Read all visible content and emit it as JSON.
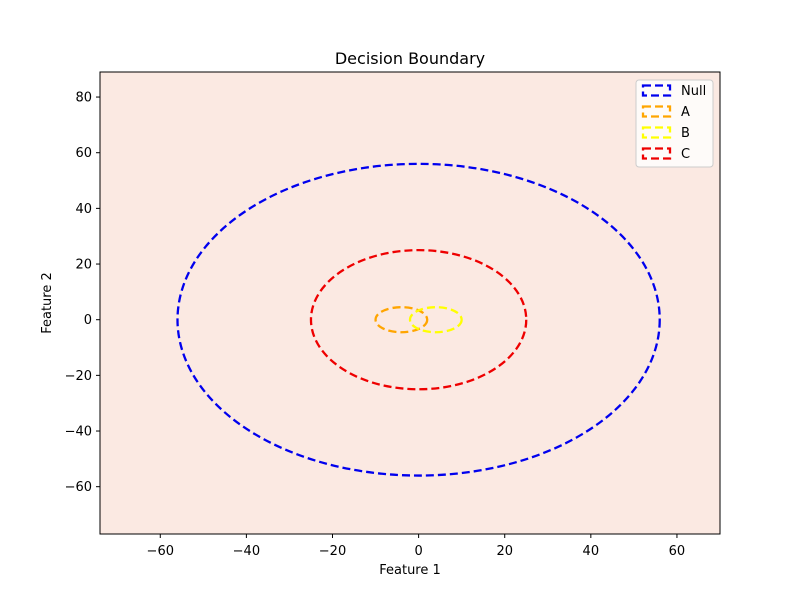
{
  "chart_data": {
    "type": "scatter",
    "title": "Decision Boundary",
    "xlabel": "Feature 1",
    "ylabel": "Feature 2",
    "xlim": [
      -74,
      70
    ],
    "ylim": [
      -77,
      89
    ],
    "xticks": [
      -60,
      -40,
      -20,
      0,
      20,
      40,
      60
    ],
    "yticks": [
      -60,
      -40,
      -20,
      0,
      20,
      40,
      60,
      80
    ],
    "xtick_labels": [
      "−60",
      "−40",
      "−20",
      "0",
      "20",
      "40",
      "60"
    ],
    "ytick_labels": [
      "−60",
      "−40",
      "−20",
      "0",
      "20",
      "40",
      "60",
      "80"
    ],
    "grid": false,
    "legend_position": "top-right",
    "background_color": "#fbe9e2",
    "series": [
      {
        "name": "Null",
        "color": "#0000ee",
        "shape": "ellipse",
        "cx": 0,
        "cy": 0,
        "rx": 56,
        "ry": 56
      },
      {
        "name": "A",
        "color": "#ffa500",
        "shape": "ellipse",
        "cx": -4,
        "cy": 0,
        "rx": 6,
        "ry": 4.5
      },
      {
        "name": "B",
        "color": "#ffff00",
        "shape": "ellipse",
        "cx": 4,
        "cy": 0,
        "rx": 6,
        "ry": 4.5
      },
      {
        "name": "C",
        "color": "#ee0000",
        "shape": "ellipse",
        "cx": 0,
        "cy": 0,
        "rx": 25,
        "ry": 25
      }
    ]
  }
}
